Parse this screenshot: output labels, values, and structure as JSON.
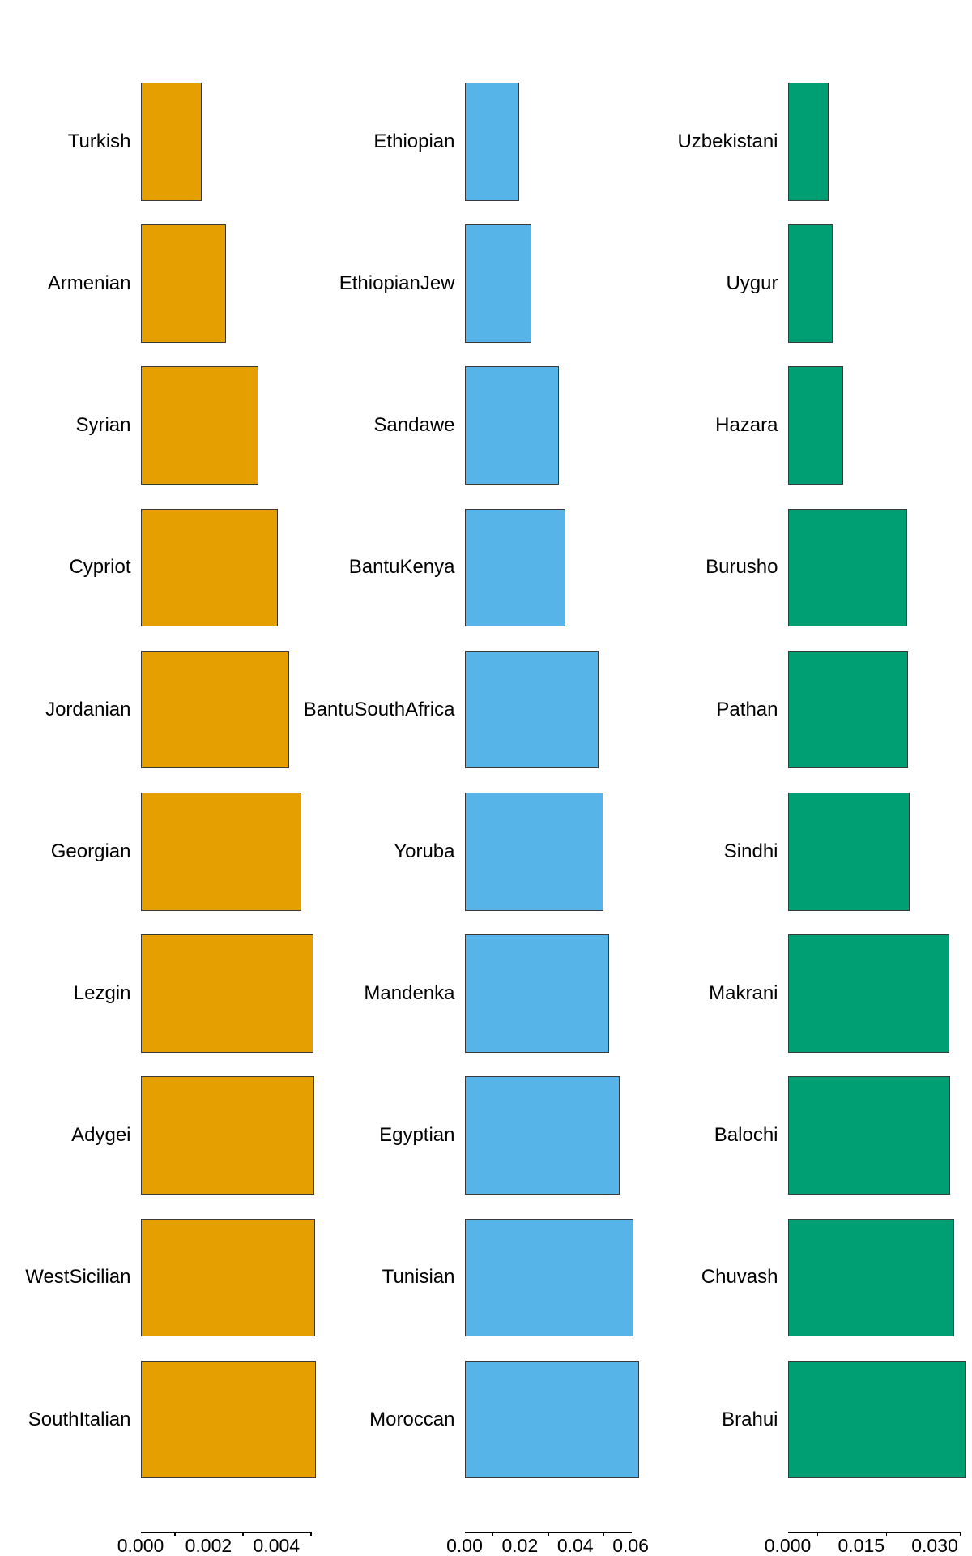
{
  "figure": {
    "background": "#ffffff",
    "border_color": "#3a3a3a",
    "text_color": "#000000"
  },
  "chart_data": {
    "type": "bar",
    "orientation": "horizontal",
    "title": "",
    "panels": [
      {
        "name": "panel-1",
        "color": "#E69F00",
        "categories": [
          "Turkish",
          "Armenian",
          "Syrian",
          "Cypriot",
          "Jordanian",
          "Georgian",
          "Lezgin",
          "Adygei",
          "WestSicilian",
          "SouthItalian"
        ],
        "values": [
          0.00181,
          0.00252,
          0.00347,
          0.00403,
          0.00437,
          0.00474,
          0.00508,
          0.00511,
          0.00514,
          0.00515
        ],
        "axis": {
          "labels": [
            "0.000",
            "0.002",
            "0.004"
          ],
          "label_values": [
            0,
            0.002,
            0.004
          ],
          "minor_ticks": [
            0.001,
            0.003,
            0.005
          ],
          "line_end": 0.005
        }
      },
      {
        "name": "panel-2",
        "color": "#56B4E9",
        "categories": [
          "Ethiopian",
          "EthiopianJew",
          "Sandawe",
          "BantuKenya",
          "BantuSouthAfrica",
          "Yoruba",
          "Mandenka",
          "Egyptian",
          "Tunisian",
          "Moroccan"
        ],
        "values": [
          0.0198,
          0.0242,
          0.034,
          0.0364,
          0.0484,
          0.0501,
          0.0521,
          0.056,
          0.0609,
          0.063
        ],
        "axis": {
          "labels": [
            "0.00",
            "0.02",
            "0.04",
            "0.06"
          ],
          "label_values": [
            0,
            0.02,
            0.04,
            0.06
          ],
          "minor_ticks": [
            0.01,
            0.03,
            0.05
          ],
          "line_end": 0.0605
        }
      },
      {
        "name": "panel-3",
        "color": "#009E73",
        "categories": [
          "Uzbekistani",
          "Uygur",
          "Hazara",
          "Burusho",
          "Pathan",
          "Sindhi",
          "Makrani",
          "Balochi",
          "Chuvash",
          "Brahui"
        ],
        "values": [
          0.0084,
          0.0091,
          0.0114,
          0.0243,
          0.0245,
          0.0248,
          0.033,
          0.0331,
          0.0339,
          0.0362
        ],
        "axis": {
          "labels": [
            "0.000",
            "0.015",
            "0.030"
          ],
          "label_values": [
            0,
            0.015,
            0.03
          ],
          "minor_ticks": [
            0.006,
            0.02,
            0.0352
          ],
          "line_end": 0.0352
        }
      }
    ]
  }
}
